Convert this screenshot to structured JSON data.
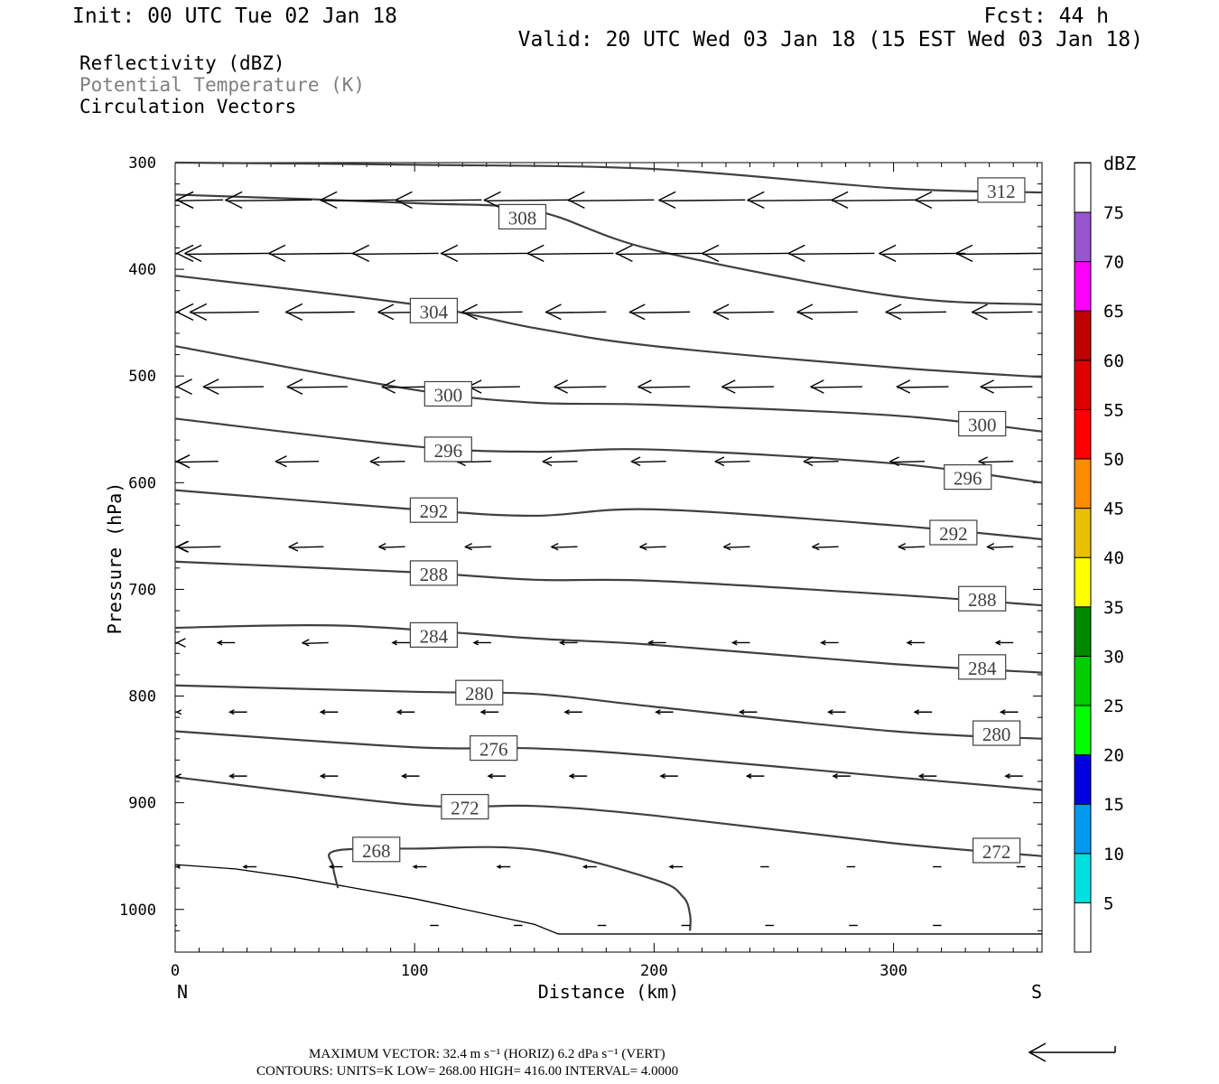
{
  "header": {
    "init": "Init: 00 UTC Tue 02 Jan 18",
    "fcst": "Fcst:   44 h",
    "valid": "Valid: 20 UTC Wed 03 Jan 18 (15 EST Wed 03 Jan 18)",
    "fields": [
      "Reflectivity (dBZ)",
      "Potential Temperature (K)",
      "Circulation Vectors"
    ]
  },
  "colors": {
    "contour": "#404040",
    "field2": "#7f7f7f",
    "text": "#000000"
  },
  "chart_data": {
    "type": "cross-section",
    "xlabel": "Distance (km)",
    "ylabel": "Pressure (hPa)",
    "xlim": [
      0,
      362
    ],
    "ylim": [
      300,
      1040
    ],
    "x_ticks": [
      0,
      100,
      200,
      300
    ],
    "y_ticks": [
      300,
      400,
      500,
      600,
      700,
      800,
      900,
      1000
    ],
    "end_labels": {
      "left": "N",
      "right": "S"
    },
    "contours": [
      {
        "label": "312",
        "points": [
          [
            0,
            300
          ],
          [
            100,
            302
          ],
          [
            200,
            306
          ],
          [
            300,
            324
          ],
          [
            362,
            328
          ]
        ],
        "labels": [
          [
            345,
            327
          ]
        ]
      },
      {
        "label": "308",
        "points": [
          [
            0,
            330
          ],
          [
            100,
            338
          ],
          [
            150,
            345
          ],
          [
            200,
            382
          ],
          [
            300,
            425
          ],
          [
            362,
            433
          ]
        ],
        "labels": [
          [
            145,
            352
          ]
        ]
      },
      {
        "label": "304",
        "points": [
          [
            0,
            406
          ],
          [
            100,
            433
          ],
          [
            150,
            455
          ],
          [
            200,
            472
          ],
          [
            300,
            492
          ],
          [
            362,
            501
          ]
        ],
        "labels": [
          [
            108,
            440
          ]
        ]
      },
      {
        "label": "300",
        "points": [
          [
            0,
            472
          ],
          [
            100,
            513
          ],
          [
            150,
            525
          ],
          [
            200,
            527
          ],
          [
            300,
            537
          ],
          [
            362,
            552
          ]
        ],
        "labels": [
          [
            114,
            518
          ],
          [
            337,
            546
          ]
        ]
      },
      {
        "label": "296",
        "points": [
          [
            0,
            540
          ],
          [
            100,
            566
          ],
          [
            150,
            571
          ],
          [
            200,
            569
          ],
          [
            300,
            582
          ],
          [
            362,
            600
          ]
        ],
        "labels": [
          [
            114,
            570
          ],
          [
            331,
            596
          ]
        ]
      },
      {
        "label": "292",
        "points": [
          [
            0,
            607
          ],
          [
            100,
            625
          ],
          [
            150,
            631
          ],
          [
            200,
            625
          ],
          [
            300,
            640
          ],
          [
            362,
            653
          ]
        ],
        "labels": [
          [
            108,
            627
          ],
          [
            325,
            648
          ]
        ]
      },
      {
        "label": "288",
        "points": [
          [
            0,
            674
          ],
          [
            100,
            684
          ],
          [
            150,
            691
          ],
          [
            200,
            692
          ],
          [
            300,
            705
          ],
          [
            362,
            715
          ]
        ],
        "labels": [
          [
            108,
            686
          ],
          [
            337,
            710
          ]
        ]
      },
      {
        "label": "284",
        "points": [
          [
            0,
            736
          ],
          [
            70,
            734
          ],
          [
            150,
            746
          ],
          [
            200,
            752
          ],
          [
            300,
            770
          ],
          [
            362,
            778
          ]
        ],
        "labels": [
          [
            108,
            744
          ],
          [
            337,
            774
          ]
        ]
      },
      {
        "label": "280",
        "points": [
          [
            0,
            790
          ],
          [
            100,
            796
          ],
          [
            150,
            798
          ],
          [
            200,
            810
          ],
          [
            300,
            833
          ],
          [
            362,
            840
          ]
        ],
        "labels": [
          [
            127,
            798
          ],
          [
            343,
            836
          ]
        ]
      },
      {
        "label": "276",
        "points": [
          [
            0,
            833
          ],
          [
            100,
            848
          ],
          [
            150,
            849
          ],
          [
            200,
            856
          ],
          [
            300,
            876
          ],
          [
            362,
            888
          ]
        ],
        "labels": [
          [
            133,
            850
          ]
        ]
      },
      {
        "label": "272",
        "points": [
          [
            0,
            876
          ],
          [
            100,
            902
          ],
          [
            150,
            903
          ],
          [
            200,
            912
          ],
          [
            300,
            938
          ],
          [
            362,
            950
          ]
        ],
        "labels": [
          [
            121,
            905
          ],
          [
            343,
            946
          ]
        ]
      },
      {
        "label": "268",
        "points": [
          [
            68,
            980
          ],
          [
            66,
            960
          ],
          [
            67,
            945
          ],
          [
            100,
            943
          ],
          [
            150,
            944
          ],
          [
            200,
            972
          ],
          [
            212,
            988
          ],
          [
            215,
            1005
          ],
          [
            215,
            1020
          ]
        ],
        "labels": [
          [
            84,
            945
          ]
        ]
      }
    ],
    "vector_rows": [
      {
        "p": 335,
        "x": [
          0,
          20,
          57,
          93,
          128,
          165,
          200,
          238,
          275,
          310,
          345
        ],
        "l": [
          1.0,
          1.0,
          1.0,
          0.9,
          1.0,
          1.0,
          1.0,
          1.0,
          1.0,
          1.0,
          1.0
        ]
      },
      {
        "p": 385,
        "x": [
          0,
          40,
          75,
          110,
          147,
          183,
          220,
          256,
          292,
          330,
          362
        ],
        "l": [
          1.0,
          1.0,
          1.0,
          1.0,
          1.0,
          1.0,
          1.0,
          1.0,
          1.0,
          1.0,
          1.0
        ]
      },
      {
        "p": 440,
        "x": [
          0,
          35,
          75,
          110,
          145,
          180,
          215,
          250,
          285,
          322,
          358
        ],
        "l": [
          0.8,
          0.8,
          0.8,
          0.7,
          0.7,
          0.7,
          0.7,
          0.7,
          0.7,
          0.7,
          0.7
        ]
      },
      {
        "p": 510,
        "x": [
          0,
          37,
          72,
          108,
          144,
          180,
          215,
          250,
          287,
          323,
          358
        ],
        "l": [
          0.7,
          0.7,
          0.7,
          0.6,
          0.6,
          0.6,
          0.6,
          0.6,
          0.6,
          0.6,
          0.6
        ]
      },
      {
        "p": 580,
        "x": [
          0,
          18,
          60,
          96,
          132,
          168,
          205,
          240,
          277,
          313,
          350
        ],
        "l": [
          0.6,
          0.5,
          0.5,
          0.4,
          0.4,
          0.4,
          0.4,
          0.4,
          0.4,
          0.4,
          0.4
        ]
      },
      {
        "p": 660,
        "x": [
          0,
          19,
          62,
          96,
          132,
          168,
          205,
          240,
          277,
          313,
          350
        ],
        "l": [
          0.5,
          0.5,
          0.4,
          0.3,
          0.3,
          0.3,
          0.3,
          0.3,
          0.3,
          0.3,
          0.3
        ]
      },
      {
        "p": 750,
        "x": [
          0,
          25,
          64,
          98,
          132,
          168,
          205,
          240,
          277,
          313,
          350
        ],
        "l": [
          0.4,
          0.2,
          0.3,
          0.2,
          0.2,
          0.2,
          0.2,
          0.2,
          0.2,
          0.2,
          0.2
        ]
      },
      {
        "p": 815,
        "x": [
          0,
          30,
          68,
          100,
          135,
          170,
          208,
          243,
          280,
          316,
          352
        ],
        "l": [
          0.2,
          0.2,
          0.2,
          0.2,
          0.2,
          0.2,
          0.2,
          0.2,
          0.2,
          0.2,
          0.2
        ]
      },
      {
        "p": 875,
        "x": [
          0,
          30,
          68,
          102,
          138,
          172,
          210,
          246,
          282,
          318,
          354
        ],
        "l": [
          0.2,
          0.2,
          0.2,
          0.2,
          0.2,
          0.2,
          0.2,
          0.2,
          0.2,
          0.2,
          0.2
        ]
      },
      {
        "p": 960,
        "x": [
          0,
          34,
          70,
          105,
          140,
          176,
          212,
          248,
          284,
          320,
          355
        ],
        "l": [
          0.15,
          0.15,
          0.15,
          0.15,
          0.15,
          0.15,
          0.15,
          0.1,
          0.1,
          0.1,
          0.1
        ]
      },
      {
        "p": 1015,
        "x": [
          0,
          110,
          145,
          180,
          215,
          250,
          285,
          320
        ],
        "l": [
          0.1,
          0.1,
          0.1,
          0.1,
          0.1,
          0.1,
          0.1,
          0.1
        ]
      }
    ],
    "terrain": [
      [
        0,
        958
      ],
      [
        25,
        962
      ],
      [
        50,
        970
      ],
      [
        75,
        980
      ],
      [
        100,
        990
      ],
      [
        125,
        1002
      ],
      [
        150,
        1014
      ],
      [
        160,
        1023
      ],
      [
        200,
        1023
      ],
      [
        250,
        1023
      ],
      [
        300,
        1023
      ],
      [
        362,
        1023
      ]
    ],
    "colorbar": {
      "unit": "dBZ",
      "levels": [
        "5",
        "10",
        "15",
        "20",
        "25",
        "30",
        "35",
        "40",
        "45",
        "50",
        "55",
        "60",
        "65",
        "70",
        "75"
      ],
      "colors": [
        "#00e0e0",
        "#0099ee",
        "#0000e0",
        "#00ff00",
        "#00cc00",
        "#008800",
        "#ffff00",
        "#e8c000",
        "#ff8c00",
        "#ff0000",
        "#dd0000",
        "#c00000",
        "#ff00ff",
        "#9955cc",
        "#ffffff"
      ]
    }
  },
  "footer": {
    "max_vector": "MAXIMUM VECTOR:  32.4 m s⁻¹ (HORIZ)        6.2 dPa s⁻¹ (VERT)",
    "contours": "CONTOURS:  UNITS=K  LOW=  268.00       HIGH=  416.00       INTERVAL=    4.0000"
  }
}
